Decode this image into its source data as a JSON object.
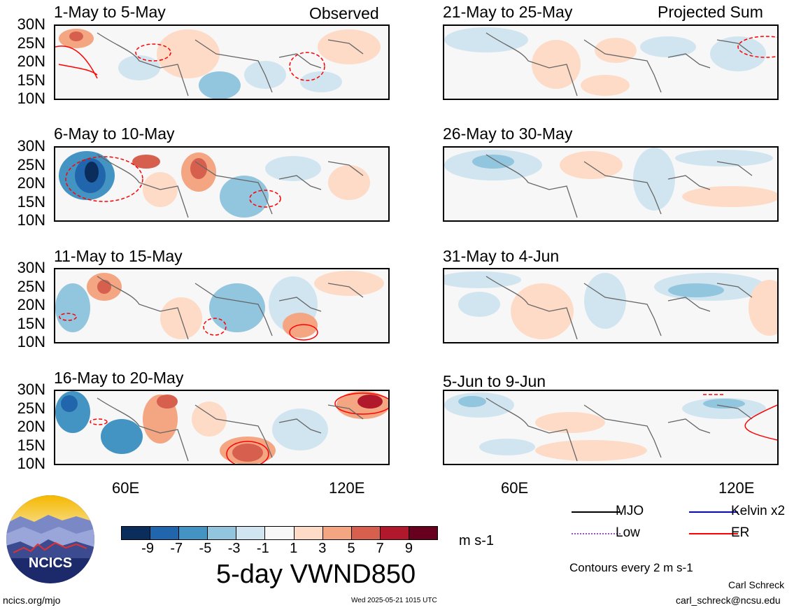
{
  "header": {
    "observed_label": "Observed",
    "projected_label": "Projected Sum"
  },
  "panels": {
    "observed": [
      {
        "title": "1-May to 5-May"
      },
      {
        "title": "6-May to 10-May"
      },
      {
        "title": "11-May to 15-May"
      },
      {
        "title": "16-May to 20-May"
      }
    ],
    "projected": [
      {
        "title": "21-May to 25-May"
      },
      {
        "title": "26-May to 30-May"
      },
      {
        "title": "31-May to 4-Jun"
      },
      {
        "title": "5-Jun to 9-Jun"
      }
    ]
  },
  "axes": {
    "lat_labels": [
      "30N",
      "25N",
      "20N",
      "15N",
      "10N"
    ],
    "lon_labels": [
      "60E",
      "120E"
    ]
  },
  "colorbar": {
    "ticks": [
      "-9",
      "-7",
      "-5",
      "-3",
      "-1",
      "1",
      "3",
      "5",
      "7",
      "9"
    ],
    "colors": [
      "#0a2d5c",
      "#2166ac",
      "#4393c3",
      "#92c5de",
      "#d1e5f0",
      "#f7f7f7",
      "#fddbc7",
      "#f4a582",
      "#d6604d",
      "#b2182b",
      "#67001f"
    ],
    "units": "m s-1"
  },
  "title": "5-day VWND850",
  "legend": {
    "mjo": "MJO",
    "kelvin": "Kelvin x2",
    "low": "Low",
    "er": "ER",
    "contours_note": "Contours every 2 m s-1",
    "colors": {
      "mjo": "#000000",
      "kelvin": "#0000ff",
      "low": "#9b4fd6",
      "er": "#ff0000"
    }
  },
  "footer": {
    "site": "ncics.org/mjo",
    "timestamp": "Wed 2025-05-21 1015 UTC",
    "author": "Carl Schreck",
    "email": "carl_schreck@ncsu.edu"
  },
  "logo": {
    "text": "NCICS"
  }
}
